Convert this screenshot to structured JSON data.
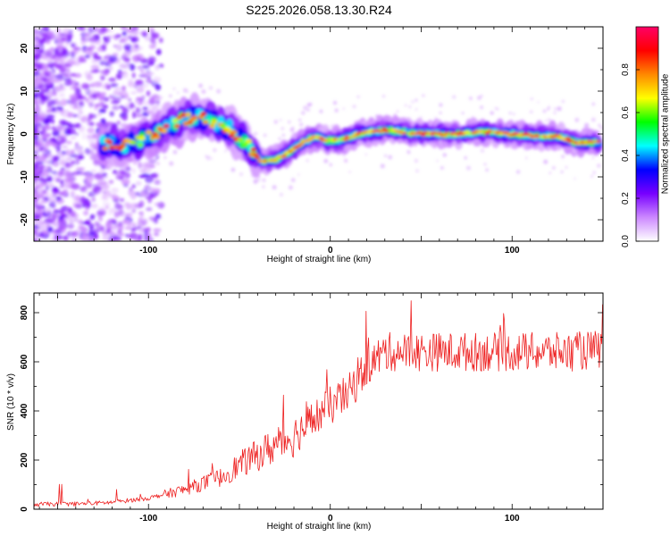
{
  "title": "S225.2026.058.13.30.R24",
  "chart_data": [
    {
      "type": "heatmap",
      "xlabel": "Height of straight line (km)",
      "ylabel": "Frequency (Hz)",
      "xlim": [
        -163,
        150
      ],
      "ylim": [
        -25,
        25
      ],
      "x_ticks": [
        -100,
        0,
        100
      ],
      "y_ticks": [
        -20,
        -10,
        0,
        10,
        20
      ],
      "grid": false,
      "colorbar": {
        "label": "Normalized spectral amplitude",
        "range": [
          0,
          1
        ],
        "ticks": [
          "0.0",
          "0.2",
          "0.4",
          "0.6",
          "0.8"
        ],
        "colors": [
          "#ffffff",
          "#cc88ff",
          "#7700ff",
          "#0000ff",
          "#00ffff",
          "#00ff00",
          "#ffff00",
          "#ff8800",
          "#ff0000",
          "#ff0066"
        ]
      },
      "ridge": {
        "x": [
          -125,
          -115,
          -105,
          -95,
          -85,
          -75,
          -65,
          -55,
          -45,
          -38,
          -30,
          -22,
          -15,
          -8,
          -2,
          5,
          15,
          30,
          50,
          70,
          85,
          100,
          115,
          125,
          135,
          148
        ],
        "y": [
          -2.3,
          -2.5,
          -1.5,
          0,
          2.5,
          4,
          3,
          1,
          -2.5,
          -6.5,
          -6,
          -4,
          -2,
          -0.5,
          -1.5,
          -1.5,
          0,
          1,
          0,
          0,
          0.5,
          0,
          -0.5,
          -0.5,
          -2,
          -2
        ]
      }
    },
    {
      "type": "line",
      "xlabel": "Height of straight line (km)",
      "ylabel": "SNR (10 * v/v)",
      "xlim": [
        -163,
        150
      ],
      "ylim": [
        0,
        880
      ],
      "x_ticks": [
        -100,
        0,
        100
      ],
      "y_ticks": [
        0,
        200,
        400,
        600,
        800
      ],
      "grid": false,
      "series": [
        {
          "color": "#ee2222",
          "trend_x": [
            -163,
            -135,
            -120,
            -100,
            -80,
            -60,
            -50,
            -40,
            -30,
            -20,
            -10,
            0,
            10,
            20,
            30,
            50,
            70,
            100,
            130,
            150
          ],
          "trend_y": [
            20,
            22,
            28,
            45,
            80,
            130,
            180,
            220,
            260,
            300,
            360,
            420,
            470,
            580,
            640,
            640,
            640,
            640,
            640,
            650
          ]
        }
      ]
    }
  ]
}
